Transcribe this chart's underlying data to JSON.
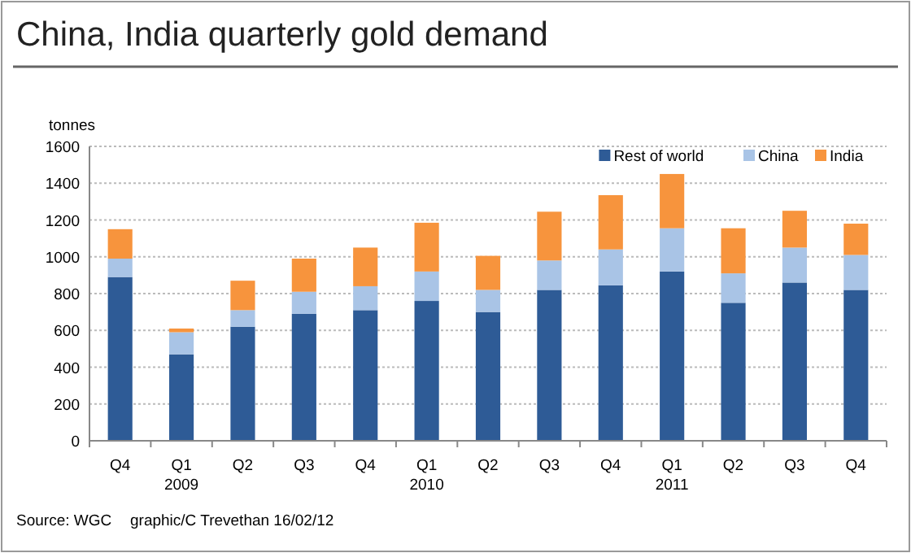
{
  "chart_data": {
    "type": "bar",
    "stacked": true,
    "title": "China, India quarterly gold demand",
    "ylabel": "tonnes",
    "categories": [
      "Q4",
      "Q1 2009",
      "Q2",
      "Q3",
      "Q4",
      "Q1 2010",
      "Q2",
      "Q3",
      "Q4",
      "Q1 2011",
      "Q2",
      "Q3",
      "Q4"
    ],
    "series": [
      {
        "name": "Rest of world",
        "color": "#2e5b96",
        "values": [
          890,
          470,
          620,
          690,
          710,
          760,
          700,
          820,
          845,
          920,
          750,
          860,
          820
        ]
      },
      {
        "name": "China",
        "color": "#a9c4e6",
        "values": [
          100,
          120,
          90,
          120,
          130,
          160,
          120,
          160,
          195,
          235,
          160,
          190,
          190
        ]
      },
      {
        "name": "India",
        "color": "#f7943d",
        "values": [
          160,
          20,
          160,
          180,
          210,
          265,
          185,
          265,
          295,
          295,
          245,
          200,
          170
        ]
      }
    ],
    "ylim": [
      0,
      1600
    ],
    "yticks": [
      0,
      200,
      400,
      600,
      800,
      1000,
      1200,
      1400,
      1600
    ],
    "grid": "y",
    "legend": "top right",
    "annotations": [
      "Source: WGC",
      "graphic/C Trevethan 16/02/12"
    ]
  }
}
